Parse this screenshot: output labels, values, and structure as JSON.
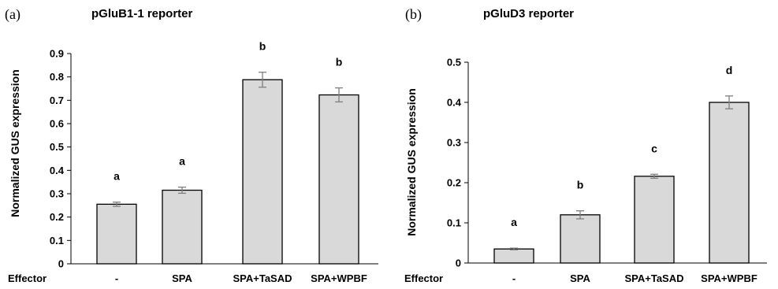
{
  "chart_data": [
    {
      "type": "bar",
      "panel_label": "(a)",
      "title": "pGluB1-1 reporter",
      "ylabel": "Normalized GUS expression",
      "xlabel": "Effector",
      "categories": [
        "-",
        "SPA",
        "SPA+TaSAD",
        "SPA+WPBF"
      ],
      "values": [
        0.255,
        0.315,
        0.788,
        0.723
      ],
      "errors": [
        0.009,
        0.013,
        0.032,
        0.03
      ],
      "significance": [
        "a",
        "a",
        "b",
        "b"
      ],
      "ylim": [
        0,
        0.9
      ],
      "yticks": [
        "0",
        "0.1",
        "0.2",
        "0.3",
        "0.4",
        "0.5",
        "0.6",
        "0.7",
        "0.8",
        "0.9"
      ],
      "bar_color": "#d9d9d9",
      "grid": false
    },
    {
      "type": "bar",
      "panel_label": "(b)",
      "title": "pGluD3 reporter",
      "ylabel": "Normalized GUS expression",
      "xlabel": "Effector",
      "categories": [
        "-",
        "SPA",
        "SPA+TaSAD",
        "SPA+WPBF"
      ],
      "values": [
        0.035,
        0.12,
        0.216,
        0.4
      ],
      "errors": [
        0.002,
        0.01,
        0.005,
        0.016
      ],
      "significance": [
        "a",
        "b",
        "c",
        "d"
      ],
      "ylim": [
        0,
        0.5
      ],
      "yticks": [
        "0",
        "0.1",
        "0.2",
        "0.3",
        "0.4",
        "0.5"
      ],
      "bar_color": "#d9d9d9",
      "grid": false
    }
  ]
}
